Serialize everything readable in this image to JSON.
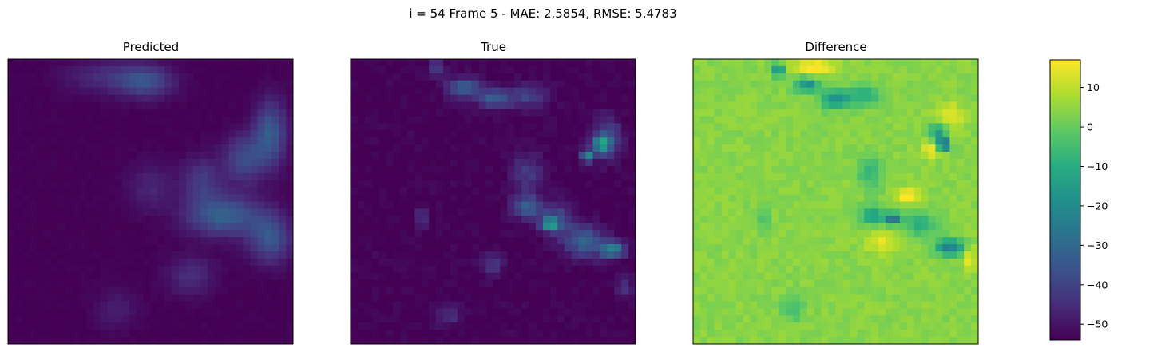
{
  "suptitle": "i = 54 Frame 5 - MAE: 2.5854, RMSE: 5.4783",
  "chart_data": [
    {
      "type": "heatmap",
      "title": "Predicted",
      "grid": false,
      "axes_ticks": false,
      "colormap": "viridis",
      "value_range": [
        -54,
        17
      ],
      "description_grid": "40x40",
      "blobs": [
        {
          "cx": 0.48,
          "cy": 0.08,
          "amp": 17,
          "sx": 0.07,
          "sy": 0.04
        },
        {
          "cx": 0.33,
          "cy": 0.06,
          "amp": 8,
          "sx": 0.1,
          "sy": 0.04
        },
        {
          "cx": 0.92,
          "cy": 0.26,
          "amp": 20,
          "sx": 0.04,
          "sy": 0.08
        },
        {
          "cx": 0.83,
          "cy": 0.35,
          "amp": 16,
          "sx": 0.05,
          "sy": 0.06
        },
        {
          "cx": 0.68,
          "cy": 0.43,
          "amp": 12,
          "sx": 0.05,
          "sy": 0.06
        },
        {
          "cx": 0.76,
          "cy": 0.55,
          "amp": 22,
          "sx": 0.09,
          "sy": 0.05
        },
        {
          "cx": 0.92,
          "cy": 0.63,
          "amp": 19,
          "sx": 0.05,
          "sy": 0.06
        },
        {
          "cx": 0.5,
          "cy": 0.45,
          "amp": 7,
          "sx": 0.06,
          "sy": 0.06
        },
        {
          "cx": 0.64,
          "cy": 0.76,
          "amp": 9,
          "sx": 0.06,
          "sy": 0.05
        },
        {
          "cx": 0.38,
          "cy": 0.88,
          "amp": 6,
          "sx": 0.05,
          "sy": 0.05
        }
      ]
    },
    {
      "type": "heatmap",
      "title": "True",
      "grid": false,
      "axes_ticks": false,
      "colormap": "viridis",
      "value_range": [
        -54,
        17
      ],
      "description_grid": "40x40",
      "blobs": [
        {
          "cx": 0.3,
          "cy": 0.03,
          "amp": 16,
          "sx": 0.02,
          "sy": 0.02
        },
        {
          "cx": 0.4,
          "cy": 0.1,
          "amp": 22,
          "sx": 0.04,
          "sy": 0.025
        },
        {
          "cx": 0.5,
          "cy": 0.14,
          "amp": 20,
          "sx": 0.04,
          "sy": 0.025
        },
        {
          "cx": 0.62,
          "cy": 0.13,
          "amp": 14,
          "sx": 0.05,
          "sy": 0.03
        },
        {
          "cx": 0.9,
          "cy": 0.28,
          "amp": 18,
          "sx": 0.035,
          "sy": 0.05
        },
        {
          "cx": 0.88,
          "cy": 0.3,
          "amp": 30,
          "sx": 0.02,
          "sy": 0.02
        },
        {
          "cx": 0.83,
          "cy": 0.34,
          "amp": 34,
          "sx": 0.015,
          "sy": 0.015
        },
        {
          "cx": 0.62,
          "cy": 0.4,
          "amp": 12,
          "sx": 0.04,
          "sy": 0.05
        },
        {
          "cx": 0.62,
          "cy": 0.52,
          "amp": 22,
          "sx": 0.035,
          "sy": 0.03
        },
        {
          "cx": 0.72,
          "cy": 0.56,
          "amp": 16,
          "sx": 0.04,
          "sy": 0.04
        },
        {
          "cx": 0.7,
          "cy": 0.58,
          "amp": 36,
          "sx": 0.02,
          "sy": 0.015
        },
        {
          "cx": 0.82,
          "cy": 0.64,
          "amp": 22,
          "sx": 0.05,
          "sy": 0.04
        },
        {
          "cx": 0.92,
          "cy": 0.67,
          "amp": 32,
          "sx": 0.03,
          "sy": 0.02
        },
        {
          "cx": 0.25,
          "cy": 0.56,
          "amp": 16,
          "sx": 0.01,
          "sy": 0.03
        },
        {
          "cx": 0.5,
          "cy": 0.72,
          "amp": 10,
          "sx": 0.03,
          "sy": 0.03
        },
        {
          "cx": 0.34,
          "cy": 0.9,
          "amp": 9,
          "sx": 0.03,
          "sy": 0.03
        },
        {
          "cx": 0.96,
          "cy": 0.8,
          "amp": 10,
          "sx": 0.02,
          "sy": 0.03
        }
      ]
    },
    {
      "type": "heatmap",
      "title": "Difference",
      "grid": false,
      "axes_ticks": false,
      "colormap": "viridis",
      "value_range": [
        -54,
        17
      ],
      "description_grid": "40x40",
      "baseline": 4,
      "blobs": [
        {
          "cx": 0.42,
          "cy": 0.03,
          "amp": 16,
          "sx": 0.05,
          "sy": 0.02
        },
        {
          "cx": 0.3,
          "cy": 0.04,
          "amp": -28,
          "sx": 0.015,
          "sy": 0.015
        },
        {
          "cx": 0.4,
          "cy": 0.09,
          "amp": -22,
          "sx": 0.03,
          "sy": 0.02
        },
        {
          "cx": 0.5,
          "cy": 0.14,
          "amp": -22,
          "sx": 0.035,
          "sy": 0.025
        },
        {
          "cx": 0.6,
          "cy": 0.13,
          "amp": -14,
          "sx": 0.04,
          "sy": 0.025
        },
        {
          "cx": 0.9,
          "cy": 0.2,
          "amp": 12,
          "sx": 0.03,
          "sy": 0.03
        },
        {
          "cx": 0.86,
          "cy": 0.26,
          "amp": -22,
          "sx": 0.02,
          "sy": 0.025
        },
        {
          "cx": 0.88,
          "cy": 0.3,
          "amp": -50,
          "sx": 0.012,
          "sy": 0.012
        },
        {
          "cx": 0.83,
          "cy": 0.32,
          "amp": 12,
          "sx": 0.02,
          "sy": 0.02
        },
        {
          "cx": 0.62,
          "cy": 0.4,
          "amp": -12,
          "sx": 0.03,
          "sy": 0.04
        },
        {
          "cx": 0.75,
          "cy": 0.48,
          "amp": 14,
          "sx": 0.03,
          "sy": 0.02
        },
        {
          "cx": 0.7,
          "cy": 0.56,
          "amp": -34,
          "sx": 0.02,
          "sy": 0.015
        },
        {
          "cx": 0.63,
          "cy": 0.55,
          "amp": -18,
          "sx": 0.03,
          "sy": 0.025
        },
        {
          "cx": 0.8,
          "cy": 0.58,
          "amp": -14,
          "sx": 0.04,
          "sy": 0.03
        },
        {
          "cx": 0.9,
          "cy": 0.66,
          "amp": -28,
          "sx": 0.035,
          "sy": 0.02
        },
        {
          "cx": 0.66,
          "cy": 0.64,
          "amp": 10,
          "sx": 0.04,
          "sy": 0.03
        },
        {
          "cx": 0.25,
          "cy": 0.56,
          "amp": -14,
          "sx": 0.01,
          "sy": 0.03
        },
        {
          "cx": 0.35,
          "cy": 0.88,
          "amp": -8,
          "sx": 0.03,
          "sy": 0.03
        },
        {
          "cx": 0.97,
          "cy": 0.7,
          "amp": 12,
          "sx": 0.015,
          "sy": 0.03
        }
      ]
    }
  ],
  "colorbar": {
    "range": [
      -54,
      17
    ],
    "ticks": [
      10,
      0,
      -10,
      -20,
      -30,
      -40,
      -50
    ],
    "tick_labels": [
      "10",
      "0",
      "−10",
      "−20",
      "−30",
      "−40",
      "−50"
    ]
  }
}
